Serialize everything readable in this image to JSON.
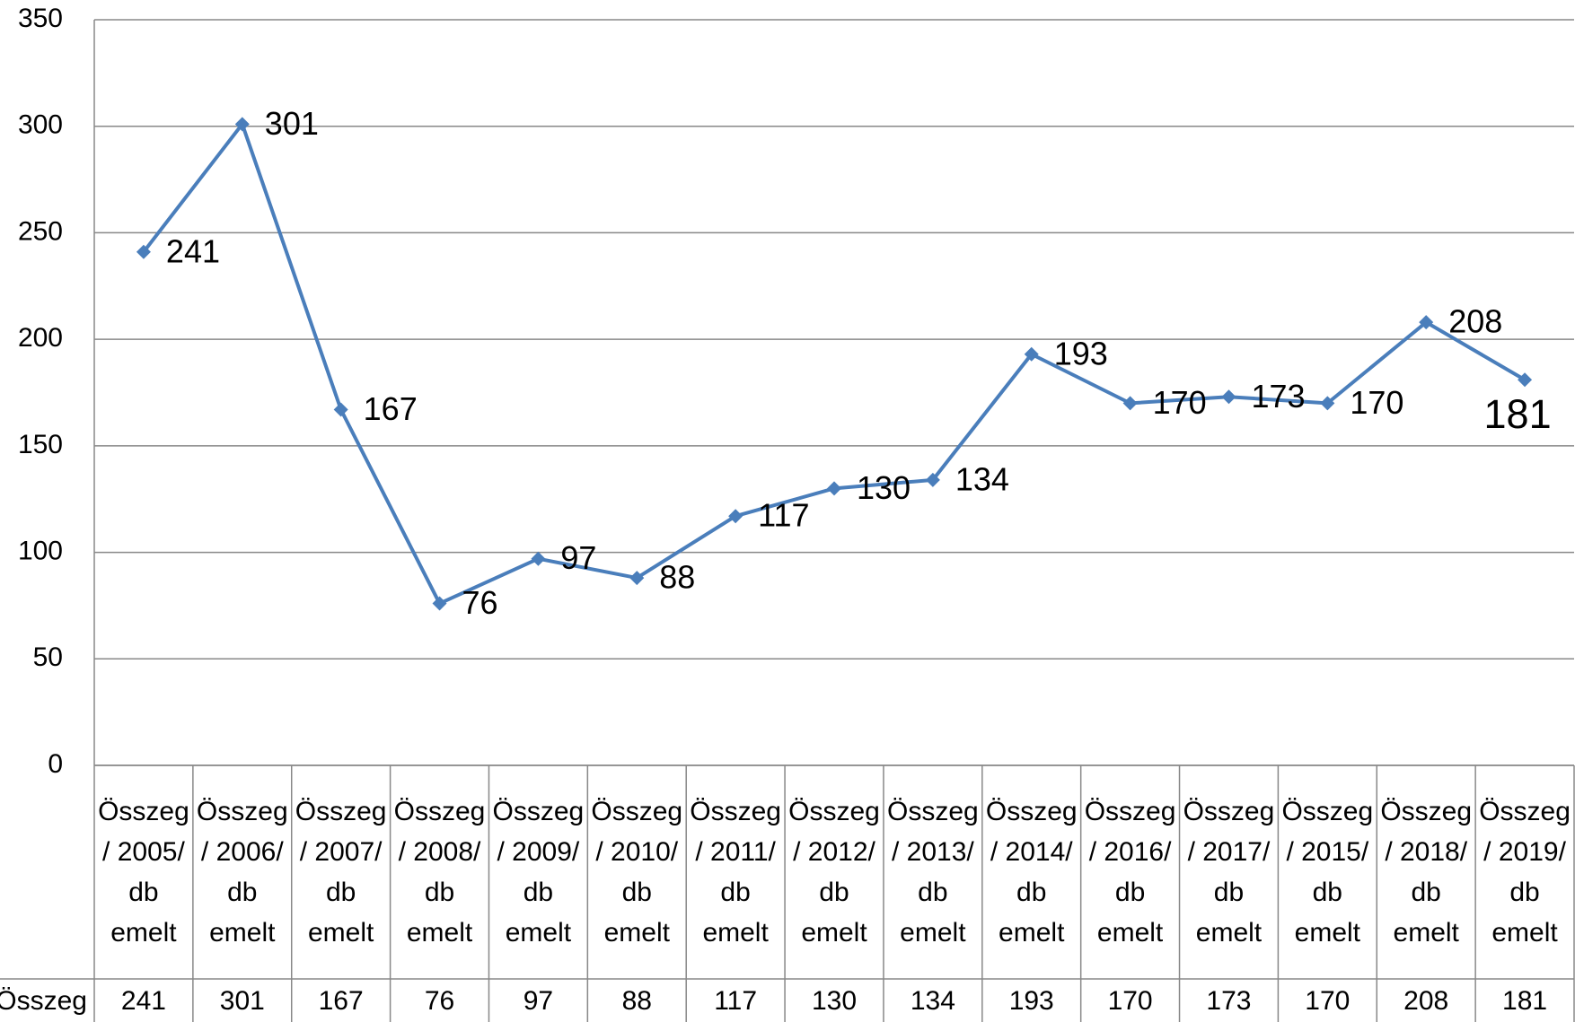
{
  "chart_data": {
    "type": "line",
    "categories": [
      "Összeg / 2005/ db emelt",
      "Összeg / 2006/ db emelt",
      "Összeg / 2007/ db emelt",
      "Összeg / 2008/ db emelt",
      "Összeg / 2009/ db emelt",
      "Összeg / 2010/ db emelt",
      "Összeg / 2011/ db emelt",
      "Összeg / 2012/ db emelt",
      "Összeg / 2013/ db emelt",
      "Összeg / 2014/ db emelt",
      "Összeg / 2016/ db emelt",
      "Összeg / 2017/ db emelt",
      "Összeg / 2015/ db emelt",
      "Összeg / 2018/ db emelt",
      "Összeg / 2019/ db emelt"
    ],
    "series": [
      {
        "name": "Összeg",
        "color": "#4a7ebb",
        "values": [
          241,
          301,
          167,
          76,
          97,
          88,
          117,
          130,
          134,
          193,
          170,
          173,
          170,
          208,
          181
        ]
      }
    ],
    "ylim": [
      0,
      350
    ],
    "yticks": [
      0,
      50,
      100,
      150,
      200,
      250,
      300,
      350
    ],
    "grid": true,
    "data_table": true
  }
}
